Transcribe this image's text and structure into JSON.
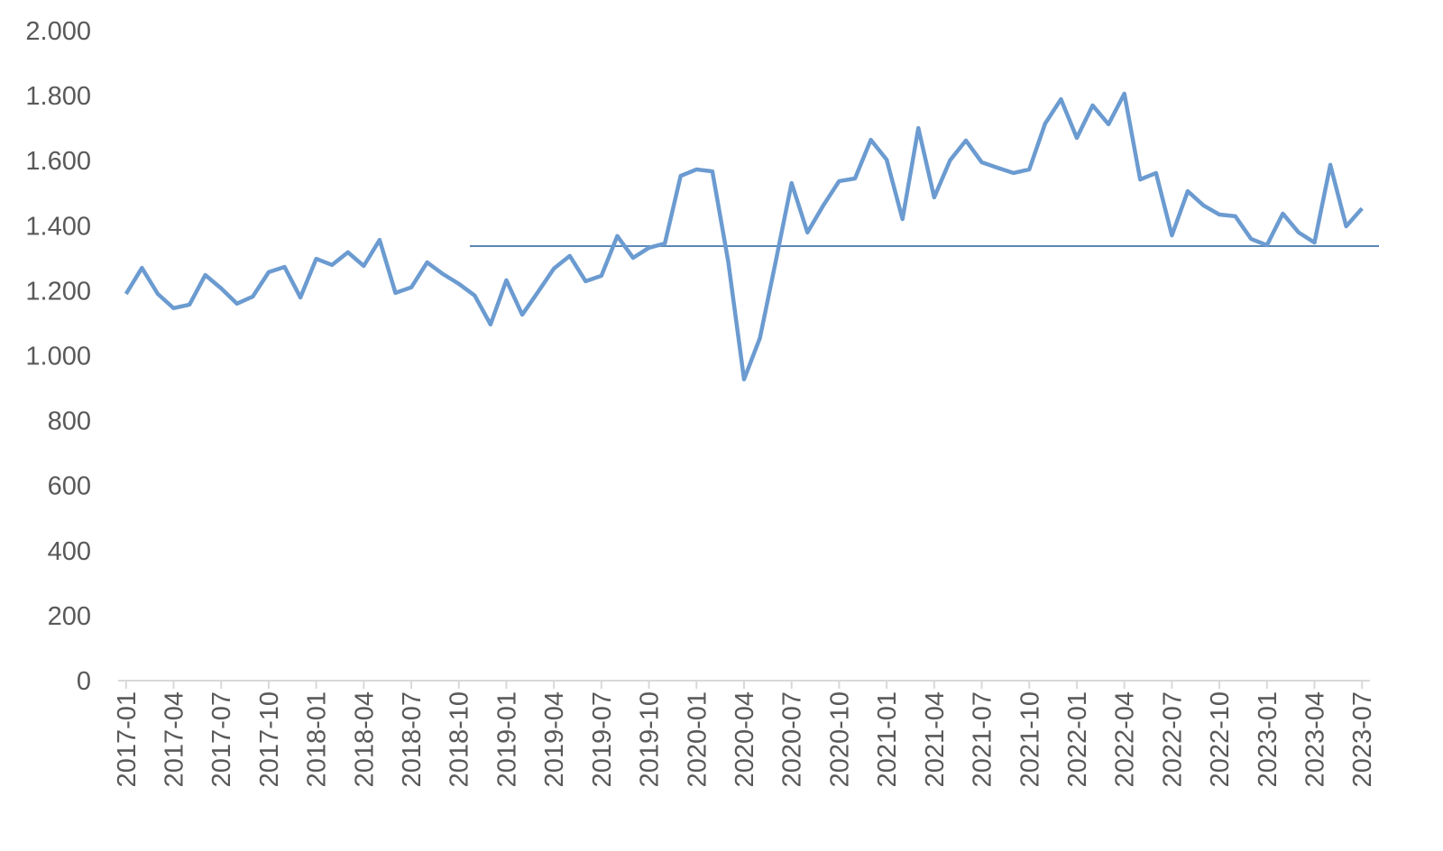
{
  "chart_data": {
    "type": "line",
    "categories": [
      "2017-01",
      null,
      null,
      "2017-04",
      null,
      null,
      "2017-07",
      null,
      null,
      "2017-10",
      null,
      null,
      "2018-01",
      null,
      null,
      "2018-04",
      null,
      null,
      "2018-07",
      null,
      null,
      "2018-10",
      null,
      null,
      "2019-01",
      null,
      null,
      "2019-04",
      null,
      null,
      "2019-07",
      null,
      null,
      "2019-10",
      null,
      null,
      "2020-01",
      null,
      null,
      "2020-04",
      null,
      null,
      "2020-07",
      null,
      null,
      "2020-10",
      null,
      null,
      "2021-01",
      null,
      null,
      "2021-04",
      null,
      null,
      "2021-07",
      null,
      null,
      "2021-10",
      null,
      null,
      "2022-01",
      null,
      null,
      "2022-04",
      null,
      null,
      "2022-07",
      null,
      null,
      "2022-10",
      null,
      null,
      "2023-01",
      null,
      null,
      "2023-04",
      null,
      null,
      "2023-07"
    ],
    "series": [
      {
        "color": "#6b9bd0",
        "values": [
          1190,
          1270,
          1190,
          1146,
          1157,
          1248,
          1207,
          1160,
          1182,
          1257,
          1273,
          1179,
          1298,
          1279,
          1318,
          1276,
          1356,
          1193,
          1210,
          1287,
          1251,
          1221,
          1185,
          1096,
          1232,
          1126,
          1196,
          1268,
          1307,
          1229,
          1246,
          1368,
          1301,
          1332,
          1345,
          1553,
          1573,
          1567,
          1290,
          927,
          1054,
          1290,
          1531,
          1379,
          1462,
          1537,
          1545,
          1664,
          1603,
          1420,
          1700,
          1487,
          1601,
          1662,
          1595,
          1578,
          1562,
          1573,
          1714,
          1789,
          1670,
          1770,
          1712,
          1806,
          1542,
          1562,
          1370,
          1506,
          1462,
          1434,
          1429,
          1359,
          1340,
          1437,
          1379,
          1348,
          1587,
          1398,
          1453
        ]
      }
    ],
    "reference_line": {
      "value": 1337,
      "color": "#5b87b5"
    },
    "ylim": [
      0,
      2000
    ],
    "yticks": [
      {
        "value": 0,
        "label": "0"
      },
      {
        "value": 200,
        "label": "200"
      },
      {
        "value": 400,
        "label": "400"
      },
      {
        "value": 600,
        "label": "600"
      },
      {
        "value": 800,
        "label": "800"
      },
      {
        "value": 1000,
        "label": "1.000"
      },
      {
        "value": 1200,
        "label": "1.200"
      },
      {
        "value": 1400,
        "label": "1.400"
      },
      {
        "value": 1600,
        "label": "1.600"
      },
      {
        "value": 1800,
        "label": "1.800"
      },
      {
        "value": 2000,
        "label": "2.000"
      }
    ],
    "grid": false
  }
}
